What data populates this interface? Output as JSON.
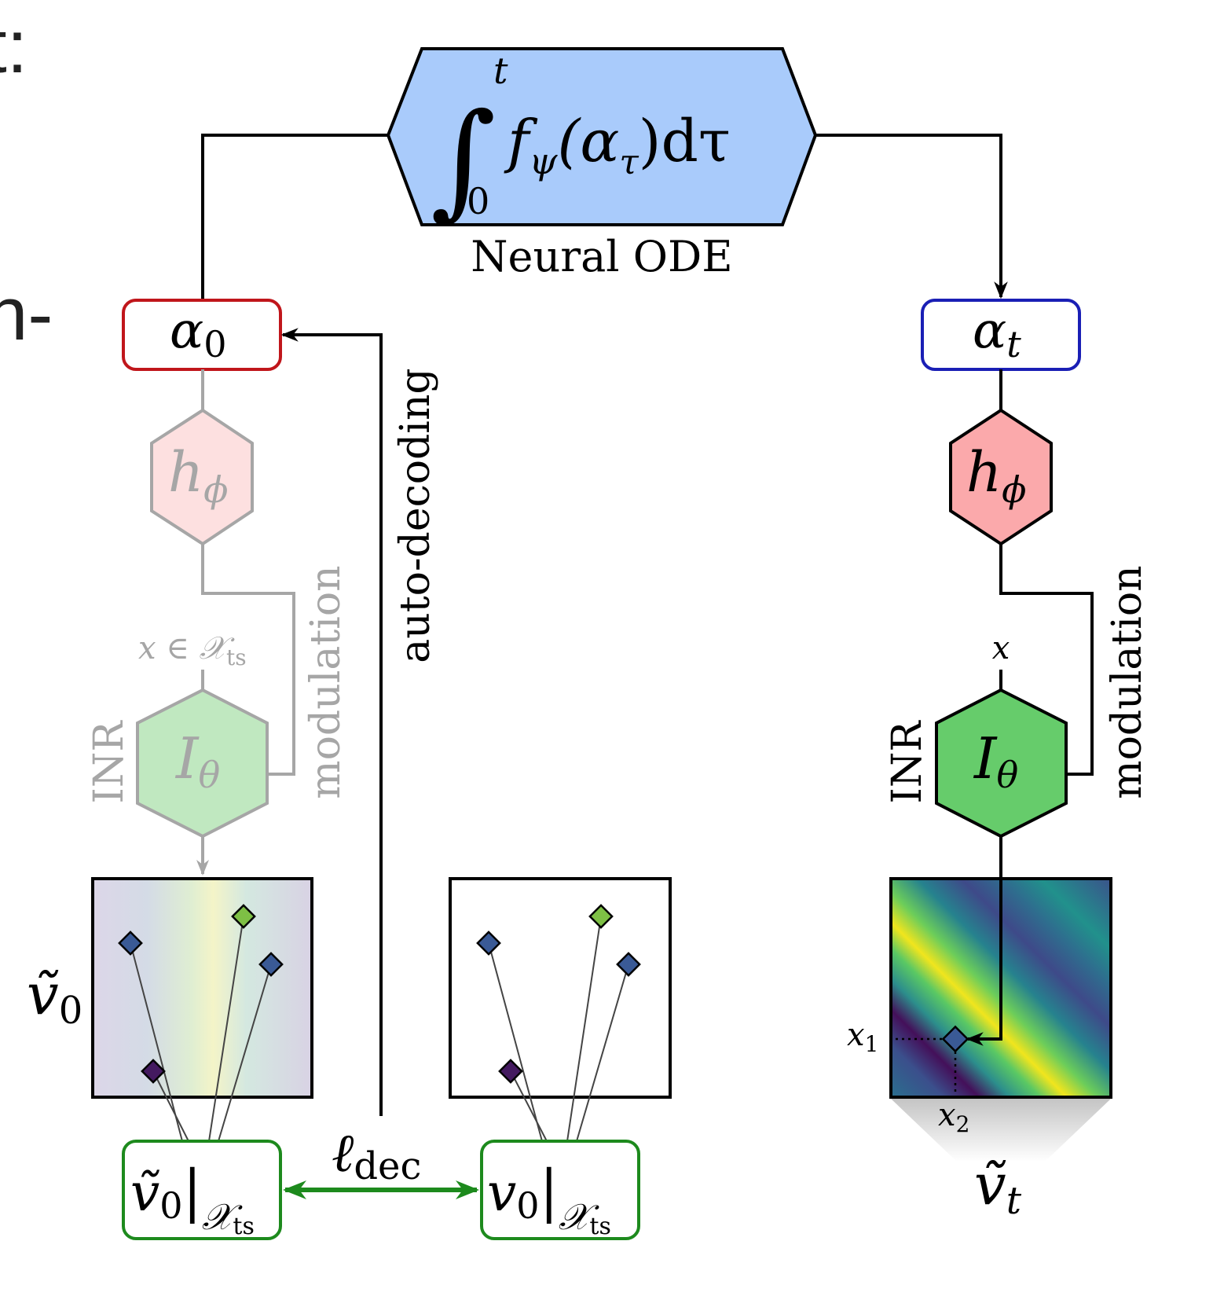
{
  "cut_text": {
    "top": "t:",
    "mid": "n-"
  },
  "ode": {
    "integral_sign": "∫",
    "upper_limit": "t",
    "lower_limit": "0",
    "integrand_f": "f",
    "integrand_sub": "ψ",
    "integrand_alpha": "(α",
    "integrand_alpha_sub": "τ",
    "integrand_tail": ")dτ",
    "caption": "Neural ODE"
  },
  "alpha0": {
    "main": "α",
    "sub": "0"
  },
  "alphat": {
    "main": "α",
    "sub": "t"
  },
  "h_left": {
    "main": "h",
    "sub": "ϕ"
  },
  "h_right": {
    "main": "h",
    "sub": "ϕ"
  },
  "inr_left": {
    "main": "I",
    "sub": "θ",
    "side_label": "INR",
    "input": "x ∈ 𝒳",
    "input_sub": "ts"
  },
  "inr_right": {
    "main": "I",
    "sub": "θ",
    "side_label": "INR",
    "input": "x"
  },
  "labels": {
    "modulation_left": "modulation",
    "modulation_right": "modulation",
    "auto_decoding": "auto-decoding",
    "x1": "x",
    "x1_sub": "1",
    "x2": "x",
    "x2_sub": "2"
  },
  "loss": {
    "main": "ℓ",
    "sub": "dec"
  },
  "vt0": {
    "main": "ṽ",
    "sub": "0"
  },
  "vt_t": {
    "main": "ṽ",
    "sub": "t"
  },
  "box_left": {
    "main": "ṽ",
    "sub": "0",
    "bar": "|",
    "set": "𝒳",
    "set_sub": "ts"
  },
  "box_mid": {
    "main": "v",
    "sub": "0",
    "bar": "|",
    "set": "𝒳",
    "set_sub": "ts"
  },
  "colors": {
    "ode_fill": "#a9cbfb",
    "alpha0_border": "#c0161b",
    "alphat_border": "#1a1fb5",
    "h_left_fill": "#fde0e0",
    "h_right_fill": "#fba9ab",
    "inr_left_fill": "#c0e8c0",
    "inr_right_fill": "#66cc6b",
    "faded": "#a6a6a6",
    "loss_green": "#1d8a1d",
    "box_green": "#1d8a1d",
    "sensor_blue": "#3a5a96",
    "sensor_green": "#7ec045",
    "sensor_purple": "#441a60"
  }
}
